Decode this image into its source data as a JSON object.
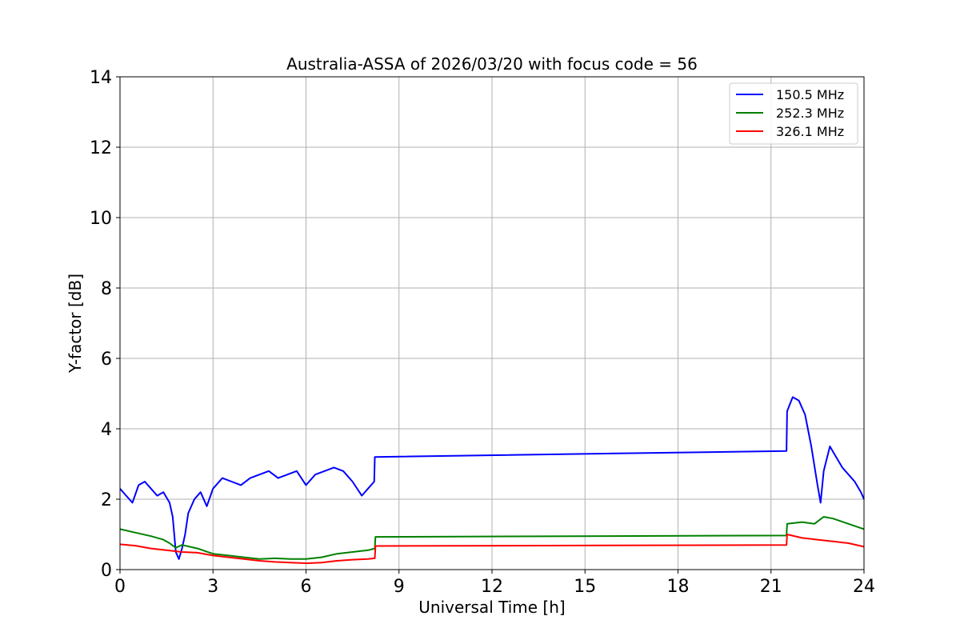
{
  "chart_data": {
    "type": "line",
    "title": "Australia-ASSA of 2026/03/20 with focus code = 56",
    "xlabel": "Universal Time [h]",
    "ylabel": "Y-factor [dB]",
    "xlim": [
      0,
      24
    ],
    "ylim": [
      0,
      14
    ],
    "xticks": [
      0,
      3,
      6,
      9,
      12,
      15,
      18,
      21,
      24
    ],
    "yticks": [
      0,
      2,
      4,
      6,
      8,
      10,
      12,
      14
    ],
    "xtick_labels": [
      "0",
      "3",
      "6",
      "9",
      "12",
      "15",
      "18",
      "21",
      "24"
    ],
    "ytick_labels": [
      "0",
      "2",
      "4",
      "6",
      "8",
      "10",
      "12",
      "14"
    ],
    "grid": true,
    "legend_position": "top-right",
    "series": [
      {
        "name": "150.5 MHz",
        "color": "#0000ff",
        "points": [
          [
            0.0,
            2.3
          ],
          [
            0.2,
            2.1
          ],
          [
            0.4,
            1.9
          ],
          [
            0.6,
            2.4
          ],
          [
            0.8,
            2.5
          ],
          [
            1.0,
            2.3
          ],
          [
            1.2,
            2.1
          ],
          [
            1.4,
            2.2
          ],
          [
            1.6,
            1.9
          ],
          [
            1.7,
            1.5
          ],
          [
            1.8,
            0.5
          ],
          [
            1.9,
            0.3
          ],
          [
            2.0,
            0.6
          ],
          [
            2.1,
            1.0
          ],
          [
            2.2,
            1.6
          ],
          [
            2.4,
            2.0
          ],
          [
            2.6,
            2.2
          ],
          [
            2.8,
            1.8
          ],
          [
            3.0,
            2.3
          ],
          [
            3.3,
            2.6
          ],
          [
            3.6,
            2.5
          ],
          [
            3.9,
            2.4
          ],
          [
            4.2,
            2.6
          ],
          [
            4.5,
            2.7
          ],
          [
            4.8,
            2.8
          ],
          [
            5.1,
            2.6
          ],
          [
            5.4,
            2.7
          ],
          [
            5.7,
            2.8
          ],
          [
            6.0,
            2.4
          ],
          [
            6.3,
            2.7
          ],
          [
            6.6,
            2.8
          ],
          [
            6.9,
            2.9
          ],
          [
            7.2,
            2.8
          ],
          [
            7.5,
            2.5
          ],
          [
            7.8,
            2.1
          ],
          [
            8.0,
            2.3
          ],
          [
            8.2,
            2.5
          ],
          [
            8.22,
            3.2
          ],
          [
            21.5,
            3.37
          ],
          [
            21.52,
            4.5
          ],
          [
            21.7,
            4.9
          ],
          [
            21.9,
            4.8
          ],
          [
            22.1,
            4.4
          ],
          [
            22.3,
            3.5
          ],
          [
            22.5,
            2.4
          ],
          [
            22.6,
            1.9
          ],
          [
            22.7,
            2.8
          ],
          [
            22.9,
            3.5
          ],
          [
            23.1,
            3.2
          ],
          [
            23.3,
            2.9
          ],
          [
            23.5,
            2.7
          ],
          [
            23.7,
            2.5
          ],
          [
            23.9,
            2.2
          ],
          [
            24.0,
            2.0
          ]
        ]
      },
      {
        "name": "252.3 MHz",
        "color": "#008000",
        "points": [
          [
            0.0,
            1.15
          ],
          [
            0.5,
            1.05
          ],
          [
            1.0,
            0.95
          ],
          [
            1.4,
            0.85
          ],
          [
            1.6,
            0.75
          ],
          [
            1.8,
            0.62
          ],
          [
            2.0,
            0.7
          ],
          [
            2.5,
            0.6
          ],
          [
            3.0,
            0.45
          ],
          [
            3.5,
            0.4
          ],
          [
            4.0,
            0.35
          ],
          [
            4.5,
            0.3
          ],
          [
            5.0,
            0.32
          ],
          [
            5.5,
            0.3
          ],
          [
            6.0,
            0.3
          ],
          [
            6.5,
            0.35
          ],
          [
            7.0,
            0.45
          ],
          [
            7.5,
            0.5
          ],
          [
            8.0,
            0.55
          ],
          [
            8.22,
            0.6
          ],
          [
            8.24,
            0.93
          ],
          [
            21.5,
            0.97
          ],
          [
            21.52,
            1.3
          ],
          [
            22.0,
            1.35
          ],
          [
            22.4,
            1.3
          ],
          [
            22.7,
            1.5
          ],
          [
            23.0,
            1.45
          ],
          [
            23.5,
            1.3
          ],
          [
            24.0,
            1.15
          ]
        ]
      },
      {
        "name": "326.1 MHz",
        "color": "#ff0000",
        "points": [
          [
            0.0,
            0.72
          ],
          [
            0.5,
            0.68
          ],
          [
            1.0,
            0.6
          ],
          [
            1.5,
            0.55
          ],
          [
            2.0,
            0.5
          ],
          [
            2.5,
            0.48
          ],
          [
            3.0,
            0.4
          ],
          [
            3.5,
            0.35
          ],
          [
            4.0,
            0.3
          ],
          [
            4.5,
            0.25
          ],
          [
            5.0,
            0.22
          ],
          [
            5.5,
            0.2
          ],
          [
            6.0,
            0.18
          ],
          [
            6.5,
            0.2
          ],
          [
            7.0,
            0.25
          ],
          [
            7.5,
            0.28
          ],
          [
            8.0,
            0.3
          ],
          [
            8.22,
            0.32
          ],
          [
            8.24,
            0.67
          ],
          [
            21.5,
            0.7
          ],
          [
            21.52,
            1.0
          ],
          [
            22.0,
            0.9
          ],
          [
            22.5,
            0.85
          ],
          [
            23.0,
            0.8
          ],
          [
            23.5,
            0.75
          ],
          [
            24.0,
            0.65
          ]
        ]
      }
    ]
  }
}
